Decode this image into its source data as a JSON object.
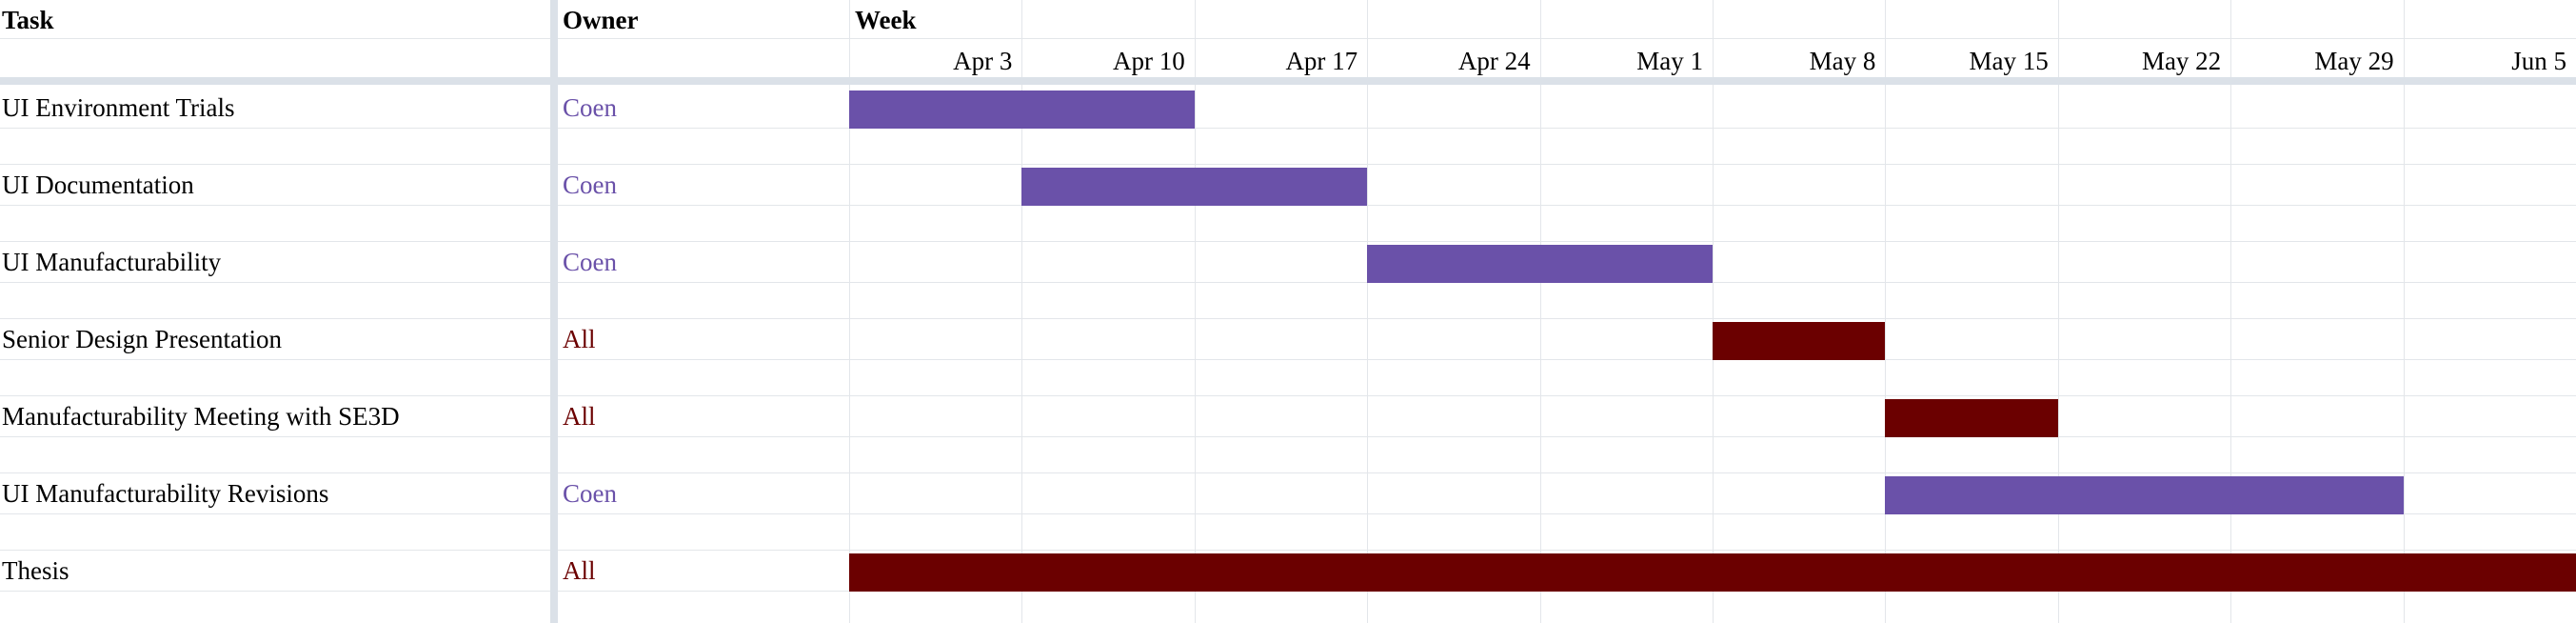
{
  "headers": {
    "task": "Task",
    "owner": "Owner",
    "week": "Week"
  },
  "colors": {
    "coen": "#6a51a9",
    "all": "#6b0000",
    "grid": "#e3e6ea"
  },
  "chart_data": {
    "type": "gantt",
    "x_ticks": [
      "Apr 3",
      "Apr 10",
      "Apr 17",
      "Apr 24",
      "May 1",
      "May 8",
      "May 15",
      "May 22",
      "May 29",
      "Jun 5"
    ],
    "tasks": [
      {
        "name": "UI Environment Trials",
        "owner": "Coen",
        "start": "Mar 27",
        "end": "Apr 10"
      },
      {
        "name": "UI Documentation",
        "owner": "Coen",
        "start": "Apr 3",
        "end": "Apr 17"
      },
      {
        "name": "UI Manufacturability",
        "owner": "Coen",
        "start": "Apr 17",
        "end": "May 1"
      },
      {
        "name": "Senior Design Presentation",
        "owner": "All",
        "start": "May 1",
        "end": "May 8"
      },
      {
        "name": "Manufacturability Meeting with SE3D",
        "owner": "All",
        "start": "May 8",
        "end": "May 15"
      },
      {
        "name": "UI Manufacturability Revisions",
        "owner": "Coen",
        "start": "May 8",
        "end": "May 29"
      },
      {
        "name": "Thesis",
        "owner": "All",
        "start": "Mar 27",
        "end": "Jun 5"
      }
    ]
  }
}
